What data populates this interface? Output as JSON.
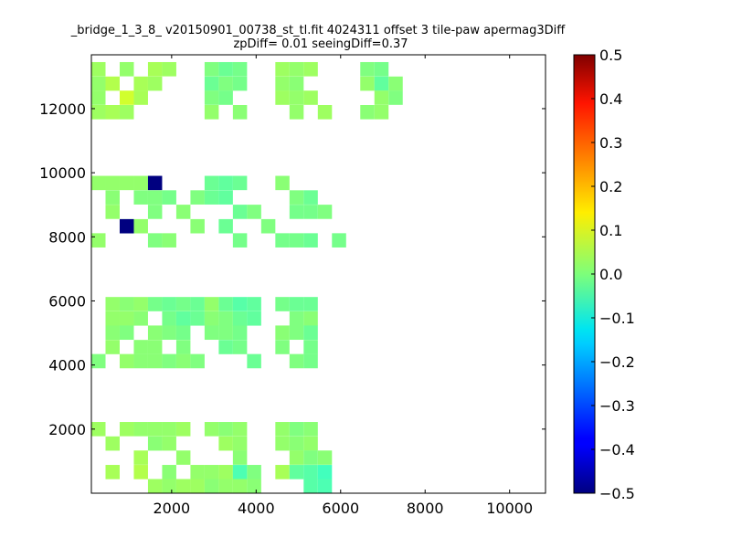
{
  "chart_data": {
    "type": "heatmap",
    "title_line1": "_bridge_1_3_8_ v20150901_00738_st_tl.fit 4024311 offset 3 tile-paw apermag3Diff",
    "title_line2": "zpDiff= 0.01 seeingDiff=0.37",
    "xlabel": "",
    "ylabel": "",
    "xlim": [
      100,
      10850
    ],
    "ylim": [
      0,
      13680
    ],
    "xticks": [
      2000,
      4000,
      6000,
      8000,
      10000
    ],
    "xtick_labels": [
      "2000",
      "4000",
      "6000",
      "8000",
      "10000"
    ],
    "yticks": [
      2000,
      4000,
      6000,
      8000,
      10000,
      12000
    ],
    "ytick_labels": [
      "2000",
      "4000",
      "6000",
      "8000",
      "10000",
      "12000"
    ],
    "colorbar": {
      "range": [
        -0.5,
        0.5
      ],
      "ticks": [
        0.5,
        0.4,
        0.3,
        0.2,
        0.1,
        0.0,
        -0.1,
        -0.2,
        -0.3,
        -0.4,
        -0.5
      ],
      "tick_labels": [
        "0.5",
        "0.4",
        "0.3",
        "0.2",
        "0.1",
        "0.0",
        "−0.1",
        "−0.2",
        "−0.3",
        "−0.4",
        "−0.5"
      ],
      "colormap": "jet"
    },
    "grid": false,
    "cell_size": [
      335,
      445
    ],
    "cell_values": [
      [
        0,
        13230,
        0.03
      ],
      [
        2,
        13230,
        0.02
      ],
      [
        0,
        12780,
        0.02
      ],
      [
        1,
        12780,
        0.05
      ],
      [
        0,
        12340,
        0.02
      ],
      [
        0,
        11890,
        0.03
      ],
      [
        4,
        13230,
        0.04
      ],
      [
        5,
        13230,
        0.03
      ],
      [
        3,
        12780,
        0.04
      ],
      [
        4,
        12780,
        0.03
      ],
      [
        2,
        12340,
        0.08
      ],
      [
        3,
        12340,
        0.04
      ],
      [
        1,
        11890,
        0.04
      ],
      [
        2,
        11890,
        0.03
      ],
      [
        8,
        13230,
        0.0
      ],
      [
        9,
        13230,
        -0.02
      ],
      [
        10,
        13230,
        -0.01
      ],
      [
        8,
        12780,
        -0.02
      ],
      [
        9,
        12780,
        0.0
      ],
      [
        10,
        12780,
        -0.01
      ],
      [
        8,
        12340,
        0.0
      ],
      [
        9,
        12340,
        -0.01
      ],
      [
        8,
        11890,
        0.02
      ],
      [
        10,
        11890,
        0.01
      ],
      [
        13,
        13230,
        0.03
      ],
      [
        14,
        13230,
        0.02
      ],
      [
        15,
        13230,
        0.03
      ],
      [
        13,
        12780,
        0.02
      ],
      [
        14,
        12780,
        0.01
      ],
      [
        13,
        12340,
        0.03
      ],
      [
        14,
        12340,
        0.02
      ],
      [
        15,
        12340,
        0.03
      ],
      [
        14,
        11890,
        0.02
      ],
      [
        16,
        11890,
        0.03
      ],
      [
        19,
        13230,
        0.0
      ],
      [
        20,
        13230,
        -0.01
      ],
      [
        19,
        12780,
        0.02
      ],
      [
        20,
        12780,
        -0.03
      ],
      [
        21,
        12780,
        0.01
      ],
      [
        20,
        12340,
        0.02
      ],
      [
        21,
        12340,
        0.0
      ],
      [
        19,
        11890,
        0.01
      ],
      [
        20,
        11890,
        0.02
      ],
      [
        0,
        9680,
        0.02
      ],
      [
        1,
        9680,
        0.02
      ],
      [
        2,
        9680,
        0.02
      ],
      [
        3,
        9680,
        0.02
      ],
      [
        1,
        9230,
        0.01
      ],
      [
        3,
        9230,
        0.0
      ],
      [
        1,
        8780,
        0.02
      ],
      [
        2,
        8330,
        0.0
      ],
      [
        0,
        7890,
        0.02
      ],
      [
        3,
        8330,
        0.02
      ],
      [
        4,
        9680,
        -0.5
      ],
      [
        4,
        9230,
        0.0
      ],
      [
        5,
        9230,
        -0.01
      ],
      [
        4,
        8780,
        0.0
      ],
      [
        6,
        8780,
        0.01
      ],
      [
        4,
        7890,
        0.0
      ],
      [
        5,
        7890,
        0.01
      ],
      [
        7,
        9230,
        0.0
      ],
      [
        7,
        8330,
        0.01
      ],
      [
        2,
        8330,
        -0.5
      ],
      [
        8,
        9680,
        -0.02
      ],
      [
        9,
        9680,
        -0.03
      ],
      [
        10,
        9680,
        -0.02
      ],
      [
        8,
        9230,
        -0.02
      ],
      [
        9,
        9230,
        -0.03
      ],
      [
        10,
        8780,
        -0.02
      ],
      [
        9,
        8330,
        -0.02
      ],
      [
        10,
        7890,
        -0.01
      ],
      [
        11,
        8780,
        0.0
      ],
      [
        12,
        8330,
        0.0
      ],
      [
        13,
        9680,
        0.01
      ],
      [
        14,
        9230,
        0.0
      ],
      [
        15,
        9230,
        -0.02
      ],
      [
        14,
        8780,
        -0.01
      ],
      [
        15,
        8780,
        -0.01
      ],
      [
        13,
        7890,
        -0.01
      ],
      [
        14,
        7890,
        -0.01
      ],
      [
        15,
        7890,
        -0.02
      ],
      [
        16,
        8780,
        0.0
      ],
      [
        17,
        7890,
        -0.01
      ],
      [
        1,
        5900,
        0.02
      ],
      [
        2,
        5900,
        0.01
      ],
      [
        3,
        5900,
        0.02
      ],
      [
        1,
        5450,
        0.02
      ],
      [
        2,
        5450,
        0.02
      ],
      [
        3,
        5450,
        0.01
      ],
      [
        1,
        5010,
        0.01
      ],
      [
        2,
        5010,
        0.0
      ],
      [
        1,
        4560,
        0.02
      ],
      [
        3,
        4560,
        0.01
      ],
      [
        0,
        4120,
        0.0
      ],
      [
        2,
        4120,
        0.02
      ],
      [
        3,
        4120,
        0.01
      ],
      [
        4,
        5900,
        -0.01
      ],
      [
        5,
        5900,
        -0.02
      ],
      [
        6,
        5900,
        -0.01
      ],
      [
        7,
        5900,
        -0.02
      ],
      [
        5,
        5450,
        -0.01
      ],
      [
        6,
        5450,
        -0.03
      ],
      [
        7,
        5450,
        -0.02
      ],
      [
        4,
        5010,
        0.01
      ],
      [
        5,
        5010,
        0.0
      ],
      [
        6,
        5010,
        -0.01
      ],
      [
        4,
        4560,
        0.01
      ],
      [
        6,
        4560,
        0.0
      ],
      [
        4,
        4120,
        0.01
      ],
      [
        5,
        4120,
        0.0
      ],
      [
        6,
        4120,
        0.01
      ],
      [
        7,
        4120,
        0.0
      ],
      [
        8,
        5900,
        0.02
      ],
      [
        9,
        5900,
        -0.02
      ],
      [
        10,
        5900,
        -0.04
      ],
      [
        11,
        5900,
        -0.03
      ],
      [
        8,
        5450,
        0.01
      ],
      [
        9,
        5450,
        0.0
      ],
      [
        10,
        5450,
        -0.02
      ],
      [
        11,
        5450,
        -0.03
      ],
      [
        8,
        5010,
        0.0
      ],
      [
        9,
        5010,
        0.0
      ],
      [
        10,
        5010,
        -0.01
      ],
      [
        9,
        4560,
        -0.02
      ],
      [
        10,
        4560,
        -0.01
      ],
      [
        11,
        4120,
        -0.02
      ],
      [
        13,
        5900,
        -0.01
      ],
      [
        14,
        5900,
        -0.02
      ],
      [
        15,
        5900,
        -0.02
      ],
      [
        14,
        5450,
        0.0
      ],
      [
        15,
        5450,
        0.01
      ],
      [
        13,
        5010,
        0.01
      ],
      [
        14,
        5010,
        0.0
      ],
      [
        15,
        5010,
        -0.02
      ],
      [
        13,
        4560,
        0.0
      ],
      [
        15,
        4560,
        -0.01
      ],
      [
        14,
        4120,
        0.0
      ],
      [
        15,
        4120,
        -0.01
      ],
      [
        0,
        2000,
        0.03
      ],
      [
        2,
        2000,
        0.03
      ],
      [
        3,
        2000,
        0.02
      ],
      [
        1,
        1550,
        0.03
      ],
      [
        3,
        1110,
        0.04
      ],
      [
        1,
        660,
        0.04
      ],
      [
        3,
        660,
        0.05
      ],
      [
        4,
        2000,
        0.02
      ],
      [
        5,
        2000,
        0.02
      ],
      [
        6,
        2000,
        0.03
      ],
      [
        4,
        1550,
        0.01
      ],
      [
        5,
        1550,
        0.02
      ],
      [
        6,
        1110,
        0.02
      ],
      [
        5,
        660,
        0.01
      ],
      [
        4,
        220,
        0.03
      ],
      [
        5,
        220,
        0.02
      ],
      [
        6,
        220,
        0.03
      ],
      [
        7,
        220,
        0.03
      ],
      [
        7,
        660,
        0.02
      ],
      [
        8,
        2000,
        0.02
      ],
      [
        9,
        2000,
        0.01
      ],
      [
        10,
        2000,
        0.02
      ],
      [
        9,
        1550,
        0.03
      ],
      [
        10,
        1550,
        0.02
      ],
      [
        10,
        1110,
        0.01
      ],
      [
        8,
        660,
        0.02
      ],
      [
        9,
        660,
        0.03
      ],
      [
        10,
        660,
        -0.05
      ],
      [
        11,
        660,
        0.0
      ],
      [
        8,
        220,
        0.01
      ],
      [
        9,
        220,
        0.02
      ],
      [
        10,
        220,
        0.02
      ],
      [
        11,
        220,
        0.01
      ],
      [
        13,
        2000,
        0.02
      ],
      [
        14,
        2000,
        0.0
      ],
      [
        15,
        2000,
        0.01
      ],
      [
        13,
        1550,
        0.02
      ],
      [
        14,
        1550,
        0.01
      ],
      [
        15,
        1550,
        0.02
      ],
      [
        16,
        1110,
        0.01
      ],
      [
        14,
        1110,
        0.02
      ],
      [
        15,
        1110,
        0.0
      ],
      [
        13,
        660,
        0.04
      ],
      [
        14,
        660,
        -0.03
      ],
      [
        15,
        660,
        -0.04
      ],
      [
        16,
        660,
        -0.06
      ],
      [
        16,
        220,
        -0.05
      ],
      [
        15,
        220,
        -0.04
      ]
    ]
  }
}
